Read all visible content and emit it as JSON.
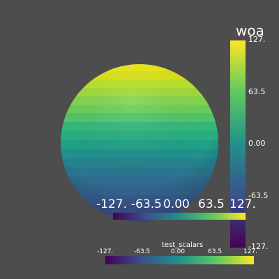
{
  "scene": {
    "background": "#4d4d4d",
    "object": "sphere"
  },
  "colormap": {
    "name": "viridis",
    "stops": [
      "#440154",
      "#3b528b",
      "#21918c",
      "#5ec962",
      "#fde725"
    ]
  },
  "vertical_bar": {
    "title": "woa",
    "labels": [
      "127.",
      "63.5",
      "0.00",
      "-63.5",
      "-127."
    ]
  },
  "horizontal_bar_large": {
    "labels": [
      "-127.",
      "-63.5",
      "0.00",
      "63.5",
      "127."
    ]
  },
  "horizontal_bar_small": {
    "title": "test_scalars",
    "labels": [
      "-127.",
      "-63.5",
      "0.00",
      "63.5",
      "127."
    ]
  }
}
